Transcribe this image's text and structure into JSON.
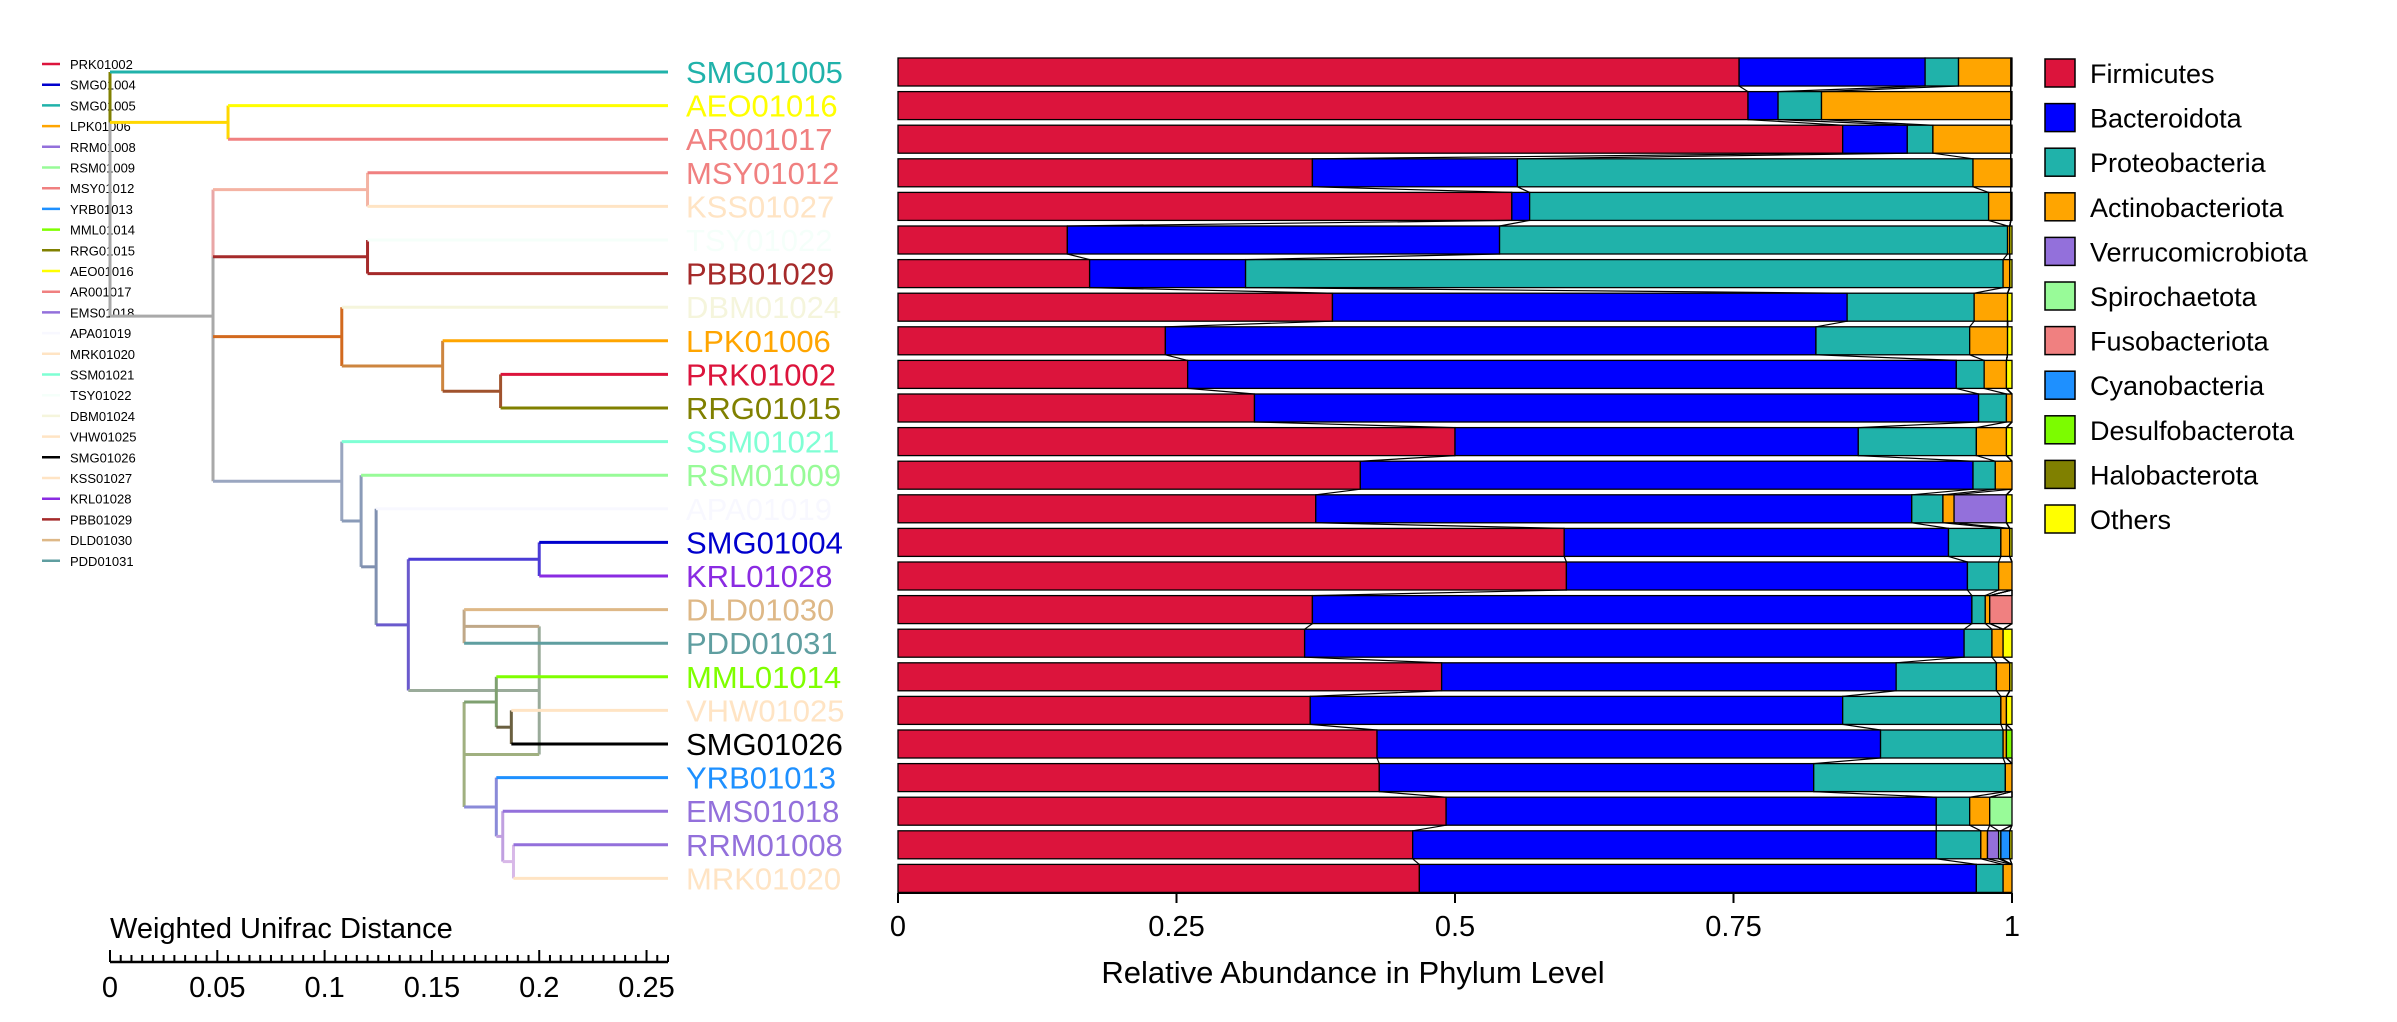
{
  "colors": {
    "Firmicutes": "#dc143c",
    "Bacteroidota": "#0000ff",
    "Proteobacteria": "#20b2aa",
    "Actinobacteriota": "#ffa500",
    "Verrucomicrobiota": "#9370db",
    "Spirochaetota": "#98fb98",
    "Fusobacteriota": "#f08080",
    "Cyanobacteria": "#1e90ff",
    "Desulfobacterota": "#7cfc00",
    "Halobacterota": "#808000",
    "Others": "#ffff00"
  },
  "chart_data": {
    "type": "bar",
    "orientation": "horizontal",
    "stacked": true,
    "xlabel": "Relative Abundance in Phylum Level",
    "xlim": [
      0,
      1
    ],
    "xticks": [
      "0",
      "0.25",
      "0.5",
      "0.75",
      "1"
    ],
    "legend_position": "right",
    "series_names": [
      "Firmicutes",
      "Bacteroidota",
      "Proteobacteria",
      "Actinobacteriota",
      "Verrucomicrobiota",
      "Spirochaetota",
      "Fusobacteriota",
      "Cyanobacteria",
      "Desulfobacterota",
      "Halobacterota",
      "Others"
    ],
    "samples": [
      {
        "name": "SMG01005",
        "color": "#20b2aa",
        "values": [
          0.755,
          0.167,
          0.03,
          0.047,
          0,
          0,
          0,
          0,
          0,
          0,
          0.001
        ]
      },
      {
        "name": "AEO01016",
        "color": "#ffff00",
        "values": [
          0.763,
          0.027,
          0.039,
          0.17,
          0,
          0,
          0,
          0,
          0,
          0,
          0.001
        ]
      },
      {
        "name": "AR001017",
        "color": "#f08080",
        "values": [
          0.848,
          0.058,
          0.023,
          0.07,
          0,
          0,
          0,
          0,
          0,
          0,
          0.001
        ]
      },
      {
        "name": "MSY01012",
        "color": "#f08080",
        "values": [
          0.372,
          0.184,
          0.409,
          0.034,
          0,
          0,
          0,
          0,
          0,
          0,
          0.001
        ]
      },
      {
        "name": "KSS01027",
        "color": "#ffe4c4",
        "values": [
          0.551,
          0.016,
          0.412,
          0.02,
          0,
          0,
          0,
          0,
          0,
          0,
          0.001
        ]
      },
      {
        "name": "TSY01022",
        "color": "#f5fffa",
        "values": [
          0.152,
          0.388,
          0.456,
          0.002,
          0,
          0,
          0,
          0,
          0,
          0,
          0.002
        ]
      },
      {
        "name": "PBB01029",
        "color": "#a52a2a",
        "values": [
          0.172,
          0.14,
          0.68,
          0.006,
          0,
          0,
          0,
          0,
          0,
          0,
          0.002
        ]
      },
      {
        "name": "DBM01024",
        "color": "#f5f5dc",
        "values": [
          0.39,
          0.462,
          0.114,
          0.03,
          0,
          0,
          0,
          0,
          0,
          0,
          0.004
        ]
      },
      {
        "name": "LPK01006",
        "color": "#ffa500",
        "values": [
          0.24,
          0.584,
          0.138,
          0.034,
          0,
          0,
          0,
          0,
          0,
          0,
          0.004
        ]
      },
      {
        "name": "PRK01002",
        "color": "#dc143c",
        "values": [
          0.26,
          0.69,
          0.025,
          0.02,
          0,
          0,
          0,
          0,
          0,
          0,
          0.005
        ]
      },
      {
        "name": "RRG01015",
        "color": "#808000",
        "values": [
          0.32,
          0.65,
          0.025,
          0.005,
          0,
          0,
          0,
          0,
          0,
          0,
          0
        ]
      },
      {
        "name": "SSM01021",
        "color": "#7fffd4",
        "values": [
          0.5,
          0.362,
          0.106,
          0.027,
          0,
          0,
          0,
          0,
          0,
          0,
          0.005
        ]
      },
      {
        "name": "RSM01009",
        "color": "#98fb98",
        "values": [
          0.415,
          0.55,
          0.02,
          0.015,
          0,
          0,
          0,
          0,
          0,
          0,
          0
        ]
      },
      {
        "name": "APA01019",
        "color": "#f8f8ff",
        "values": [
          0.375,
          0.535,
          0.028,
          0.01,
          0.047,
          0,
          0,
          0,
          0,
          0,
          0.005
        ]
      },
      {
        "name": "SMG01004",
        "color": "#0000cd",
        "values": [
          0.598,
          0.345,
          0.047,
          0.008,
          0,
          0,
          0,
          0,
          0,
          0,
          0.002
        ]
      },
      {
        "name": "KRL01028",
        "color": "#8a2be2",
        "values": [
          0.6,
          0.36,
          0.028,
          0.012,
          0,
          0,
          0,
          0,
          0,
          0,
          0
        ]
      },
      {
        "name": "DLD01030",
        "color": "#deb887",
        "values": [
          0.372,
          0.592,
          0.012,
          0.004,
          0,
          0,
          0.02,
          0,
          0,
          0,
          0
        ]
      },
      {
        "name": "PDD01031",
        "color": "#5f9ea0",
        "values": [
          0.365,
          0.592,
          0.025,
          0.01,
          0,
          0,
          0,
          0,
          0,
          0,
          0.008
        ]
      },
      {
        "name": "MML01014",
        "color": "#7fff00",
        "values": [
          0.488,
          0.408,
          0.09,
          0.012,
          0,
          0,
          0,
          0,
          0,
          0,
          0.002
        ]
      },
      {
        "name": "VHW01025",
        "color": "#ffe4c4",
        "values": [
          0.37,
          0.478,
          0.142,
          0.005,
          0,
          0,
          0,
          0,
          0,
          0,
          0.005
        ]
      },
      {
        "name": "SMG01026",
        "color": "#000000",
        "values": [
          0.43,
          0.452,
          0.11,
          0.003,
          0,
          0,
          0,
          0,
          0.005,
          0,
          0
        ]
      },
      {
        "name": "YRB01013",
        "color": "#1e90ff",
        "values": [
          0.432,
          0.39,
          0.172,
          0.006,
          0,
          0,
          0,
          0,
          0,
          0,
          0
        ]
      },
      {
        "name": "EMS01018",
        "color": "#9370db",
        "values": [
          0.492,
          0.44,
          0.03,
          0.018,
          0,
          0.02,
          0,
          0,
          0,
          0,
          0
        ]
      },
      {
        "name": "RRM01008",
        "color": "#9370db",
        "values": [
          0.462,
          0.47,
          0.04,
          0.006,
          0.01,
          0.002,
          0,
          0.008,
          0,
          0,
          0.002
        ]
      },
      {
        "name": "MRK01020",
        "color": "#ffe4c4",
        "values": [
          0.468,
          0.5,
          0.024,
          0.008,
          0,
          0,
          0,
          0,
          0,
          0,
          0
        ]
      }
    ],
    "small_legend": [
      {
        "label": "PRK01002",
        "color": "#dc143c"
      },
      {
        "label": "SMG01004",
        "color": "#0000cd"
      },
      {
        "label": "SMG01005",
        "color": "#20b2aa"
      },
      {
        "label": "LPK01006",
        "color": "#ffa500"
      },
      {
        "label": "RRM01008",
        "color": "#9370db"
      },
      {
        "label": "RSM01009",
        "color": "#98fb98"
      },
      {
        "label": "MSY01012",
        "color": "#f08080"
      },
      {
        "label": "YRB01013",
        "color": "#1e90ff"
      },
      {
        "label": "MML01014",
        "color": "#7fff00"
      },
      {
        "label": "RRG01015",
        "color": "#808000"
      },
      {
        "label": "AEO01016",
        "color": "#ffff00"
      },
      {
        "label": "AR001017",
        "color": "#f08080"
      },
      {
        "label": "EMS01018",
        "color": "#9370db"
      },
      {
        "label": "APA01019",
        "color": "#f8f8ff"
      },
      {
        "label": "MRK01020",
        "color": "#ffe4c4"
      },
      {
        "label": "SSM01021",
        "color": "#7fffd4"
      },
      {
        "label": "TSY01022",
        "color": "#f5fffa"
      },
      {
        "label": "DBM01024",
        "color": "#f5f5dc"
      },
      {
        "label": "VHW01025",
        "color": "#ffe4c4"
      },
      {
        "label": "SMG01026",
        "color": "#000000"
      },
      {
        "label": "KSS01027",
        "color": "#ffe4c4"
      },
      {
        "label": "KRL01028",
        "color": "#8a2be2"
      },
      {
        "label": "PBB01029",
        "color": "#a52a2a"
      },
      {
        "label": "DLD01030",
        "color": "#deb887"
      },
      {
        "label": "PDD01031",
        "color": "#5f9ea0"
      }
    ],
    "tree_scale": {
      "title": "Weighted Unifrac Distance",
      "ticks": [
        "0",
        "0.05",
        "0.1",
        "0.15",
        "0.2",
        "0.25"
      ],
      "range": [
        0,
        0.26
      ]
    },
    "tree": {
      "h": 0,
      "c": "#a9a9a9",
      "children": [
        {
          "h": 0.0,
          "c": "#808000",
          "children": [
            {
              "h": 0.055,
              "c": "#20b2aa",
              "leaf": 0
            },
            {
              "h": 0.055,
              "c": "#ffd700",
              "children": [
                {
                  "h": 0.16,
                  "c": "#ffff00",
                  "leaf": 1
                },
                {
                  "h": 0.16,
                  "c": "#f08080",
                  "leaf": 2
                }
              ]
            }
          ]
        },
        {
          "h": 0.048,
          "c": "#a9a9a9",
          "children": [
            {
              "h": 0.048,
              "c": "#e9a6a6",
              "children": [
                {
                  "h": 0.12,
                  "c": "#f4b3a3",
                  "children": [
                    {
                      "h": 0.162,
                      "c": "#f08080",
                      "leaf": 3
                    },
                    {
                      "h": 0.162,
                      "c": "#ffe4c4",
                      "leaf": 4
                    }
                  ]
                },
                {
                  "h": 0.12,
                  "c": "#a52a2a",
                  "children": [
                    {
                      "h": 0.145,
                      "c": "#f5fffa",
                      "leaf": 5
                    },
                    {
                      "h": 0.145,
                      "c": "#a52a2a",
                      "leaf": 6
                    }
                  ]
                }
              ]
            },
            {
              "h": 0.048,
              "c": "#a9a9a9",
              "children": [
                {
                  "h": 0.108,
                  "c": "#d2691e",
                  "children": [
                    {
                      "h": 0.155,
                      "c": "#f5f5dc",
                      "leaf": 7
                    },
                    {
                      "h": 0.155,
                      "c": "#cd853f",
                      "children": [
                        {
                          "h": 0.182,
                          "c": "#ffa500",
                          "leaf": 8
                        },
                        {
                          "h": 0.182,
                          "c": "#a0522d",
                          "children": [
                            {
                              "h": 0.205,
                              "c": "#dc143c",
                              "leaf": 9
                            },
                            {
                              "h": 0.205,
                              "c": "#808000",
                              "leaf": 10
                            }
                          ]
                        }
                      ]
                    }
                  ]
                },
                {
                  "h": 0.108,
                  "c": "#9aa6c0",
                  "children": [
                    {
                      "h": 0.117,
                      "c": "#7fffd4",
                      "leaf": 11
                    },
                    {
                      "h": 0.117,
                      "c": "#8a9bb8",
                      "children": [
                        {
                          "h": 0.124,
                          "c": "#98fb98",
                          "leaf": 12
                        },
                        {
                          "h": 0.124,
                          "c": "#8090b0",
                          "children": [
                            {
                              "h": 0.139,
                              "c": "#f8f8ff",
                              "leaf": 13
                            },
                            {
                              "h": 0.139,
                              "c": "#6a5acd",
                              "children": [
                                {
                                  "h": 0.2,
                                  "c": "#4b3cd6",
                                  "children": [
                                    {
                                      "h": 0.201,
                                      "c": "#0000cd",
                                      "leaf": 14
                                    },
                                    {
                                      "h": 0.201,
                                      "c": "#8a2be2",
                                      "leaf": 15
                                    }
                                  ]
                                },
                                {
                                  "h": 0.2,
                                  "c": "#9aab9a",
                                  "children": [
                                    {
                                      "h": 0.165,
                                      "c": "#c0a888",
                                      "children": [
                                        {
                                          "h": 0.24,
                                          "c": "#deb887",
                                          "leaf": 16
                                        },
                                        {
                                          "h": 0.24,
                                          "c": "#5f9ea0",
                                          "leaf": 17
                                        }
                                      ]
                                    },
                                    {
                                      "h": 0.165,
                                      "c": "#a0b080",
                                      "children": [
                                        {
                                          "h": 0.18,
                                          "c": "#7fa070",
                                          "children": [
                                            {
                                              "h": 0.187,
                                              "c": "#7fff00",
                                              "leaf": 18
                                            },
                                            {
                                              "h": 0.187,
                                              "c": "#6b6040",
                                              "children": [
                                                {
                                                  "h": 0.235,
                                                  "c": "#ffe4c4",
                                                  "leaf": 19
                                                },
                                                {
                                                  "h": 0.235,
                                                  "c": "#000000",
                                                  "leaf": 20
                                                }
                                              ]
                                            }
                                          ]
                                        },
                                        {
                                          "h": 0.18,
                                          "c": "#8a8ad8",
                                          "children": [
                                            {
                                              "h": 0.183,
                                              "c": "#1e90ff",
                                              "leaf": 21
                                            },
                                            {
                                              "h": 0.183,
                                              "c": "#c0a0e0",
                                              "children": [
                                                {
                                                  "h": 0.188,
                                                  "c": "#9370db",
                                                  "leaf": 22
                                                },
                                                {
                                                  "h": 0.188,
                                                  "c": "#d8b8e8",
                                                  "children": [
                                                    {
                                                      "h": 0.21,
                                                      "c": "#9370db",
                                                      "leaf": 23
                                                    },
                                                    {
                                                      "h": 0.21,
                                                      "c": "#ffe4c4",
                                                      "leaf": 24
                                                    }
                                                  ]
                                                }
                                              ]
                                            }
                                          ]
                                        }
                                      ]
                                    }
                                  ]
                                }
                              ]
                            }
                          ]
                        }
                      ]
                    }
                  ]
                }
              ]
            }
          ]
        }
      ]
    }
  }
}
